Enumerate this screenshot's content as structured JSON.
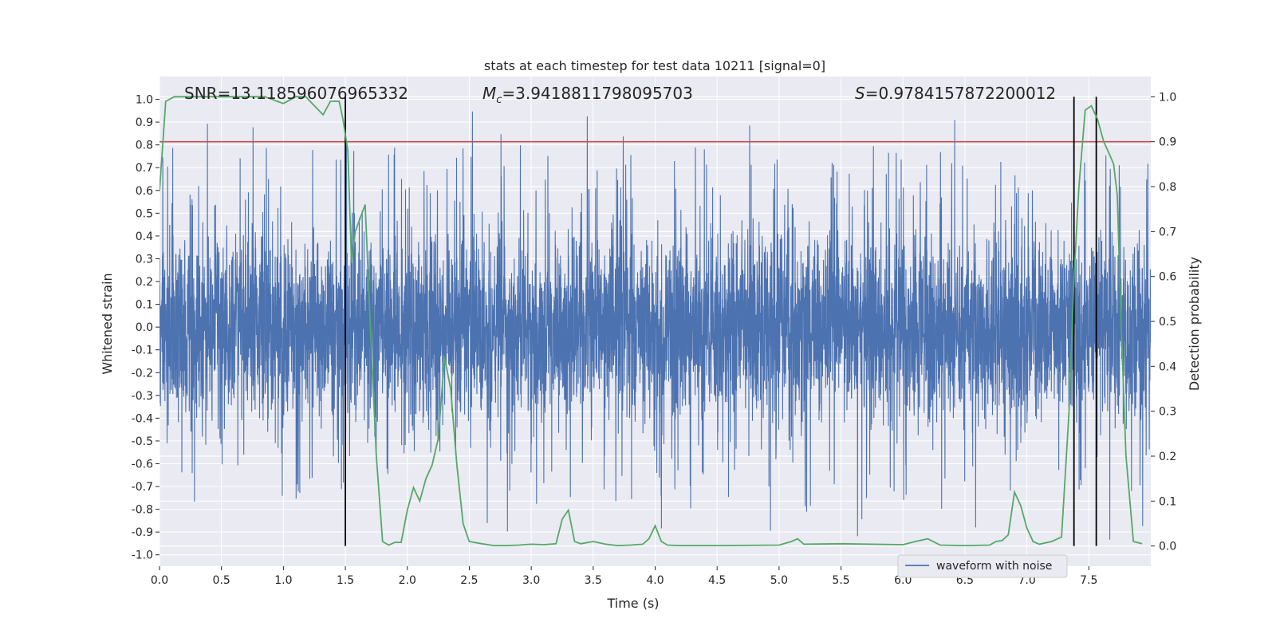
{
  "chart_data": {
    "type": "line",
    "title": "stats at each timestep for test data 10211 [signal=0]",
    "xlabel": "Time (s)",
    "ylabel": "Whitened strain",
    "y2label": "Detection probability",
    "xlim": [
      0,
      8
    ],
    "ylim": [
      -1.05,
      1.1
    ],
    "y2lim": [
      -0.045,
      1.045
    ],
    "xticks": [
      "0.0",
      "0.5",
      "1.0",
      "1.5",
      "2.0",
      "2.5",
      "3.0",
      "3.5",
      "4.0",
      "4.5",
      "5.0",
      "5.5",
      "6.0",
      "6.5",
      "7.0",
      "7.5"
    ],
    "yticks": [
      "1.0",
      "0.9",
      "0.8",
      "0.7",
      "0.6",
      "0.5",
      "0.4",
      "0.3",
      "0.2",
      "0.1",
      "0.0",
      "-0.1",
      "-0.2",
      "-0.3",
      "-0.4",
      "-0.5",
      "-0.6",
      "-0.7",
      "-0.8",
      "-0.9",
      "-1.0"
    ],
    "y2ticks": [
      "1.0",
      "0.9",
      "0.8",
      "0.7",
      "0.6",
      "0.5",
      "0.4",
      "0.3",
      "0.2",
      "0.1",
      "0.0"
    ],
    "grid": true,
    "legend_position": "lower-right",
    "colors": {
      "waveform": "#4c72b0",
      "probability": "#55a868",
      "threshold": "#c44e52",
      "bounds": "#000000",
      "background": "#eaeaf2",
      "grid": "#ffffff"
    },
    "annotations": {
      "snr_label": "SNR",
      "snr_value": "=13.118596076965332",
      "mc_symbol": "M",
      "mc_subscript": "c",
      "mc_value": "=3.9418811798095703",
      "s_symbol": "S",
      "s_value": "=0.9784157872200012"
    },
    "threshold": 0.9,
    "vertical_lines": [
      1.5,
      7.38,
      7.56
    ],
    "series": [
      {
        "name": "waveform with noise",
        "axis": "left",
        "style": "dense noise, envelope about ±0.5 with occasional spikes to ±0.9",
        "in_legend": true
      },
      {
        "name": "detection probability",
        "axis": "right",
        "in_legend": false,
        "x": [
          0.0,
          0.05,
          0.12,
          0.3,
          0.5,
          0.7,
          0.85,
          0.95,
          1.0,
          1.1,
          1.18,
          1.25,
          1.32,
          1.38,
          1.45,
          1.48,
          1.52,
          1.55,
          1.58,
          1.62,
          1.66,
          1.7,
          1.75,
          1.8,
          1.85,
          1.9,
          1.95,
          2.0,
          2.05,
          2.1,
          2.15,
          2.2,
          2.25,
          2.3,
          2.35,
          2.4,
          2.45,
          2.5,
          2.6,
          2.7,
          2.8,
          2.9,
          3.0,
          3.1,
          3.2,
          3.25,
          3.3,
          3.35,
          3.4,
          3.5,
          3.6,
          3.7,
          3.8,
          3.9,
          3.95,
          4.0,
          4.05,
          4.1,
          4.2,
          4.5,
          5.0,
          5.1,
          5.15,
          5.2,
          5.5,
          6.0,
          6.1,
          6.2,
          6.3,
          6.5,
          6.7,
          6.75,
          6.8,
          6.85,
          6.9,
          6.95,
          7.0,
          7.05,
          7.1,
          7.2,
          7.28,
          7.34,
          7.38,
          7.42,
          7.47,
          7.52,
          7.57,
          7.62,
          7.67,
          7.7,
          7.73,
          7.76,
          7.8,
          7.86,
          7.93
        ],
        "values": [
          0.79,
          0.99,
          1.0,
          1.0,
          1.0,
          1.0,
          1.0,
          0.99,
          0.985,
          1.0,
          1.0,
          0.98,
          0.96,
          0.99,
          0.99,
          0.95,
          0.88,
          0.63,
          0.7,
          0.73,
          0.76,
          0.5,
          0.2,
          0.01,
          0.002,
          0.008,
          0.008,
          0.08,
          0.13,
          0.1,
          0.15,
          0.18,
          0.24,
          0.42,
          0.35,
          0.18,
          0.05,
          0.01,
          0.005,
          0.001,
          0.001,
          0.002,
          0.004,
          0.003,
          0.005,
          0.06,
          0.08,
          0.01,
          0.005,
          0.01,
          0.004,
          0.001,
          0.002,
          0.004,
          0.016,
          0.045,
          0.01,
          0.002,
          0.001,
          0.001,
          0.002,
          0.01,
          0.016,
          0.004,
          0.005,
          0.003,
          0.01,
          0.016,
          0.002,
          0.001,
          0.002,
          0.01,
          0.012,
          0.025,
          0.12,
          0.09,
          0.04,
          0.01,
          0.004,
          0.01,
          0.02,
          0.3,
          0.6,
          0.8,
          0.97,
          0.98,
          0.95,
          0.9,
          0.87,
          0.85,
          0.78,
          0.5,
          0.2,
          0.01,
          0.005
        ]
      }
    ],
    "legend": [
      "waveform with noise"
    ]
  }
}
